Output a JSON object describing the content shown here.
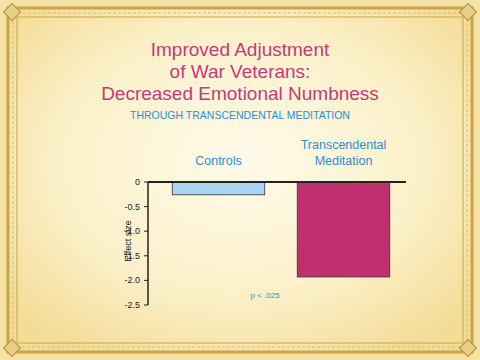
{
  "chart_data": {
    "type": "bar",
    "title": "Improved Adjustment\nof War Veterans:\nDecreased Emotional Numbness",
    "subtitle": "THROUGH TRANSCENDENTAL MEDITATION",
    "y_label": "Effect size",
    "annotation": "p < .025",
    "categories": [
      "Controls",
      "Transcendental Meditation"
    ],
    "values": [
      -0.26,
      -1.93
    ],
    "colors": [
      "#a8d4f2",
      "#c0306e"
    ],
    "ylim": [
      -2.5,
      0
    ],
    "yticks": [
      0,
      -0.5,
      {
        "value": -1,
        "label": "-1.0"
      },
      -1.5,
      {
        "value": -2,
        "label": "-2.0"
      },
      -2.5
    ],
    "grid": false
  }
}
